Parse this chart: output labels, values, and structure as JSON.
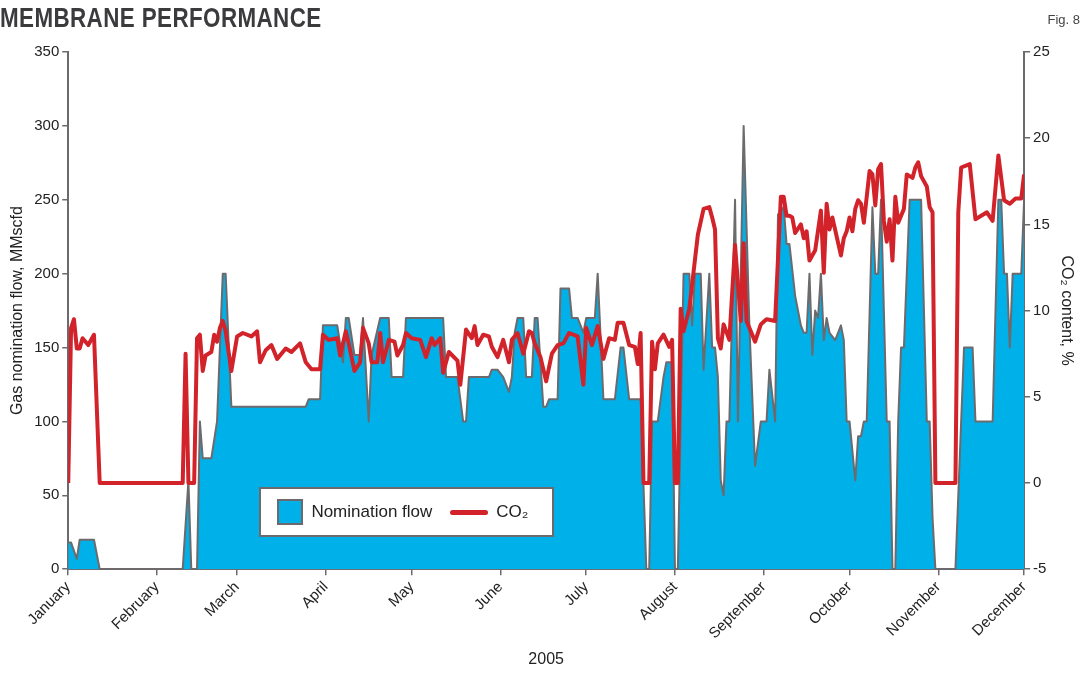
{
  "chart_data": {
    "type": "area",
    "title": "MEMBRANE PERFORMANCE",
    "annotations": [
      "Fig. 8"
    ],
    "xlabel": "2005",
    "ylabel": "Gas nomination flow, MMscfd",
    "y2label": "CO₂ content, %",
    "xlim": [
      "2005-01-01",
      "2005-12-01"
    ],
    "xticks": [
      {
        "value": "2005-01-01",
        "label": "January"
      },
      {
        "value": "2005-02-01",
        "label": "February"
      },
      {
        "value": "2005-03-01",
        "label": "March"
      },
      {
        "value": "2005-04-01",
        "label": "April"
      },
      {
        "value": "2005-05-01",
        "label": "May"
      },
      {
        "value": "2005-06-01",
        "label": "June"
      },
      {
        "value": "2005-07-01",
        "label": "July"
      },
      {
        "value": "2005-08-01",
        "label": "August"
      },
      {
        "value": "2005-09-01",
        "label": "September"
      },
      {
        "value": "2005-10-01",
        "label": "October"
      },
      {
        "value": "2005-11-01",
        "label": "November"
      },
      {
        "value": "2005-12-01",
        "label": "December"
      }
    ],
    "ylim": [
      0,
      350
    ],
    "yticks": [
      0,
      50,
      100,
      150,
      200,
      250,
      300,
      350
    ],
    "y2lim": [
      -5,
      25
    ],
    "y2ticks": [
      -5,
      0,
      5,
      10,
      15,
      20,
      25
    ],
    "legend": "bottom",
    "grid": false,
    "series": [
      {
        "name": "Nomination flow",
        "color": "#00b0e8",
        "x": [
          "2005-01-01",
          "2005-01-02",
          "2005-01-04",
          "2005-01-05",
          "2005-01-10",
          "2005-01-12",
          "2005-02-10",
          "2005-02-12",
          "2005-02-13",
          "2005-02-15",
          "2005-02-16",
          "2005-02-17",
          "2005-02-20",
          "2005-02-22",
          "2005-02-24",
          "2005-02-25",
          "2005-02-27",
          "2005-03-25",
          "2005-03-26",
          "2005-03-30",
          "2005-03-31",
          "2005-04-05",
          "2005-04-07",
          "2005-04-08",
          "2005-04-09",
          "2005-04-11",
          "2005-04-13",
          "2005-04-14",
          "2005-04-16",
          "2005-04-17",
          "2005-04-20",
          "2005-04-23",
          "2005-04-24",
          "2005-04-28",
          "2005-04-29",
          "2005-05-12",
          "2005-05-13",
          "2005-05-17",
          "2005-05-19",
          "2005-05-20",
          "2005-05-21",
          "2005-05-28",
          "2005-05-29",
          "2005-05-31",
          "2005-06-02",
          "2005-06-04",
          "2005-06-05",
          "2005-06-06",
          "2005-06-07",
          "2005-06-09",
          "2005-06-10",
          "2005-06-12",
          "2005-06-13",
          "2005-06-14",
          "2005-06-16",
          "2005-06-17",
          "2005-06-18",
          "2005-06-21",
          "2005-06-22",
          "2005-06-25",
          "2005-06-26",
          "2005-06-28",
          "2005-06-30",
          "2005-07-01",
          "2005-07-04",
          "2005-07-05",
          "2005-07-07",
          "2005-07-11",
          "2005-07-13",
          "2005-07-14",
          "2005-07-16",
          "2005-07-20",
          "2005-07-22",
          "2005-07-23",
          "2005-07-24",
          "2005-07-26",
          "2005-07-28",
          "2005-07-29",
          "2005-07-31",
          "2005-08-01",
          "2005-08-02",
          "2005-08-04",
          "2005-08-06",
          "2005-08-07",
          "2005-08-08",
          "2005-08-10",
          "2005-08-11",
          "2005-08-13",
          "2005-08-14",
          "2005-08-15",
          "2005-08-16",
          "2005-08-17",
          "2005-08-18",
          "2005-08-19",
          "2005-08-20",
          "2005-08-22",
          "2005-08-23",
          "2005-08-25",
          "2005-08-27",
          "2005-08-29",
          "2005-08-31",
          "2005-09-02",
          "2005-09-03",
          "2005-09-05",
          "2005-09-06",
          "2005-09-08",
          "2005-09-09",
          "2005-09-10",
          "2005-09-12",
          "2005-09-14",
          "2005-09-15",
          "2005-09-16",
          "2005-09-17",
          "2005-09-18",
          "2005-09-19",
          "2005-09-20",
          "2005-09-21",
          "2005-09-22",
          "2005-09-23",
          "2005-09-24",
          "2005-09-26",
          "2005-09-28",
          "2005-09-29",
          "2005-09-30",
          "2005-10-01",
          "2005-10-03",
          "2005-10-04",
          "2005-10-05",
          "2005-10-06",
          "2005-10-07",
          "2005-10-09",
          "2005-10-10",
          "2005-10-11",
          "2005-10-12",
          "2005-10-14",
          "2005-10-15",
          "2005-10-16",
          "2005-10-17",
          "2005-10-18",
          "2005-10-19",
          "2005-10-20",
          "2005-10-22",
          "2005-10-26",
          "2005-10-28",
          "2005-10-29",
          "2005-10-30",
          "2005-10-31",
          "2005-11-07",
          "2005-11-10",
          "2005-11-13",
          "2005-11-14",
          "2005-11-20",
          "2005-11-22",
          "2005-11-23",
          "2005-11-24",
          "2005-11-25",
          "2005-11-26",
          "2005-11-27",
          "2005-11-30",
          "2005-12-01"
        ],
        "values": [
          18,
          18,
          7,
          20,
          20,
          0,
          0,
          60,
          0,
          0,
          100,
          75,
          75,
          100,
          200,
          200,
          110,
          110,
          115,
          115,
          165,
          165,
          140,
          170,
          170,
          145,
          145,
          170,
          100,
          145,
          170,
          170,
          130,
          130,
          170,
          170,
          130,
          130,
          100,
          100,
          130,
          130,
          135,
          135,
          130,
          120,
          130,
          160,
          170,
          170,
          130,
          130,
          170,
          170,
          110,
          110,
          115,
          115,
          190,
          190,
          170,
          170,
          160,
          170,
          170,
          200,
          115,
          115,
          150,
          150,
          115,
          115,
          0,
          0,
          100,
          100,
          130,
          140,
          140,
          0,
          0,
          200,
          200,
          165,
          200,
          200,
          135,
          200,
          150,
          150,
          130,
          60,
          50,
          100,
          100,
          250,
          100,
          300,
          165,
          70,
          100,
          100,
          135,
          100,
          240,
          245,
          220,
          220,
          185,
          165,
          160,
          160,
          200,
          145,
          175,
          170,
          200,
          155,
          170,
          160,
          155,
          165,
          155,
          100,
          100,
          60,
          90,
          90,
          100,
          100,
          245,
          200,
          200,
          250,
          100,
          100,
          0,
          0,
          100,
          150,
          150,
          250,
          250,
          100,
          100,
          35,
          0,
          0,
          150,
          150,
          100,
          100,
          250,
          250,
          200,
          200,
          150,
          200,
          200,
          250
        ]
      },
      {
        "name": "CO₂",
        "type": "line",
        "axis": "y2",
        "color": "#d2232a",
        "x": [
          "2005-01-01",
          "2005-01-02",
          "2005-01-03",
          "2005-01-04",
          "2005-01-05",
          "2005-01-06",
          "2005-01-08",
          "2005-01-10",
          "2005-01-12",
          "2005-02-10",
          "2005-02-11",
          "2005-02-12",
          "2005-02-14",
          "2005-02-15",
          "2005-02-16",
          "2005-02-17",
          "2005-02-18",
          "2005-02-20",
          "2005-02-21",
          "2005-02-22",
          "2005-02-23",
          "2005-02-24",
          "2005-02-25",
          "2005-02-27",
          "2005-03-01",
          "2005-03-03",
          "2005-03-06",
          "2005-03-08",
          "2005-03-09",
          "2005-03-11",
          "2005-03-13",
          "2005-03-15",
          "2005-03-18",
          "2005-03-20",
          "2005-03-23",
          "2005-03-25",
          "2005-03-27",
          "2005-03-30",
          "2005-03-31",
          "2005-04-02",
          "2005-04-05",
          "2005-04-06",
          "2005-04-08",
          "2005-04-09",
          "2005-04-11",
          "2005-04-13",
          "2005-04-14",
          "2005-04-16",
          "2005-04-17",
          "2005-04-19",
          "2005-04-20",
          "2005-04-21",
          "2005-04-23",
          "2005-04-25",
          "2005-04-26",
          "2005-04-28",
          "2005-04-29",
          "2005-05-01",
          "2005-05-04",
          "2005-05-06",
          "2005-05-08",
          "2005-05-09",
          "2005-05-11",
          "2005-05-12",
          "2005-05-14",
          "2005-05-17",
          "2005-05-18",
          "2005-05-20",
          "2005-05-22",
          "2005-05-23",
          "2005-05-24",
          "2005-05-26",
          "2005-05-28",
          "2005-05-29",
          "2005-05-31",
          "2005-06-02",
          "2005-06-04",
          "2005-06-05",
          "2005-06-07",
          "2005-06-09",
          "2005-06-11",
          "2005-06-12",
          "2005-06-13",
          "2005-06-15",
          "2005-06-17",
          "2005-06-19",
          "2005-06-21",
          "2005-06-23",
          "2005-06-25",
          "2005-06-28",
          "2005-06-30",
          "2005-07-01",
          "2005-07-03",
          "2005-07-05",
          "2005-07-07",
          "2005-07-09",
          "2005-07-11",
          "2005-07-12",
          "2005-07-14",
          "2005-07-16",
          "2005-07-18",
          "2005-07-19",
          "2005-07-20",
          "2005-07-21",
          "2005-07-23",
          "2005-07-24",
          "2005-07-25",
          "2005-07-26",
          "2005-07-28",
          "2005-07-30",
          "2005-07-31",
          "2005-08-01",
          "2005-08-02",
          "2005-08-03",
          "2005-08-04",
          "2005-08-06",
          "2005-08-09",
          "2005-08-11",
          "2005-08-13",
          "2005-08-14",
          "2005-08-15",
          "2005-08-16",
          "2005-08-17",
          "2005-08-18",
          "2005-08-20",
          "2005-08-22",
          "2005-08-24",
          "2005-08-25",
          "2005-08-26",
          "2005-08-29",
          "2005-08-31",
          "2005-09-02",
          "2005-09-05",
          "2005-09-07",
          "2005-09-08",
          "2005-09-09",
          "2005-09-10",
          "2005-09-11",
          "2005-09-12",
          "2005-09-14",
          "2005-09-15",
          "2005-09-16",
          "2005-09-17",
          "2005-09-19",
          "2005-09-21",
          "2005-09-22",
          "2005-09-23",
          "2005-09-24",
          "2005-09-25",
          "2005-09-28",
          "2005-09-29",
          "2005-09-30",
          "2005-10-01",
          "2005-10-02",
          "2005-10-03",
          "2005-10-04",
          "2005-10-05",
          "2005-10-06",
          "2005-10-08",
          "2005-10-09",
          "2005-10-10",
          "2005-10-11",
          "2005-10-12",
          "2005-10-13",
          "2005-10-14",
          "2005-10-15",
          "2005-10-16",
          "2005-10-17",
          "2005-10-18",
          "2005-10-20",
          "2005-10-21",
          "2005-10-23",
          "2005-10-24",
          "2005-10-25",
          "2005-10-26",
          "2005-10-28",
          "2005-10-29",
          "2005-10-30",
          "2005-10-31",
          "2005-11-07",
          "2005-11-08",
          "2005-11-09",
          "2005-11-12",
          "2005-11-14",
          "2005-11-18",
          "2005-11-20",
          "2005-11-22",
          "2005-11-24",
          "2005-11-26",
          "2005-11-28",
          "2005-11-30",
          "2005-12-01"
        ],
        "values": [
          0,
          9,
          9.5,
          7.8,
          7.8,
          8.4,
          8,
          8.6,
          0,
          0,
          7.5,
          0,
          0,
          8.4,
          8.6,
          6.5,
          7.4,
          7.6,
          8.6,
          8.2,
          9,
          9.4,
          8.8,
          6.5,
          8.5,
          8.7,
          8.5,
          8.8,
          7,
          7.7,
          8,
          7.2,
          7.8,
          7.6,
          8.1,
          7,
          6.6,
          6.6,
          8.6,
          8.3,
          8.4,
          7.4,
          8.8,
          8.1,
          6.5,
          7,
          9,
          8.1,
          7,
          7,
          8.7,
          7,
          8.3,
          8.2,
          7.4,
          8,
          8.7,
          8.4,
          8.3,
          7.3,
          8.4,
          8,
          8.4,
          6.4,
          7.6,
          7.1,
          5.7,
          8.9,
          8.4,
          9.1,
          8,
          8.6,
          8.5,
          7.9,
          7.3,
          8.3,
          7,
          8.3,
          8.7,
          7.5,
          8.8,
          8.7,
          8.1,
          7.3,
          5.9,
          7.5,
          8,
          8.1,
          8.7,
          8.5,
          5.7,
          9,
          8,
          9.1,
          7.2,
          8.4,
          8.3,
          9.3,
          9.3,
          8,
          7.9,
          6.9,
          8.7,
          0,
          0,
          8.2,
          6.6,
          8.1,
          8.6,
          7.9,
          8.3,
          0,
          0,
          10.1,
          8.8,
          10.1,
          14.4,
          15.9,
          16,
          15.4,
          14.7,
          8.4,
          7.8,
          9.2,
          8.3,
          13.8,
          9.4,
          13.9,
          9.4,
          8.2,
          9.2,
          9.5,
          9.4,
          16.6,
          16.6,
          15.5,
          15.5,
          15.4,
          14.5,
          15,
          14.2,
          14.6,
          12.9,
          13.5,
          15.8,
          12.2,
          16.2,
          14.7,
          15.4,
          13.2,
          14.2,
          14.6,
          15.4,
          14.6,
          15.9,
          16.4,
          16.2,
          15.1,
          18.1,
          17.9,
          16.1,
          18.2,
          18.5,
          15.2,
          14,
          15.3,
          12.9,
          16.6,
          15.1,
          15.9,
          17.9,
          17.7,
          18.3,
          18.6,
          17.8,
          17.2,
          16,
          15.7,
          0,
          0,
          15.7,
          18.3,
          18.5,
          15.3,
          15.7,
          15.2,
          19,
          16.4,
          16.2,
          16.5,
          16.5,
          17.9
        ]
      }
    ]
  }
}
